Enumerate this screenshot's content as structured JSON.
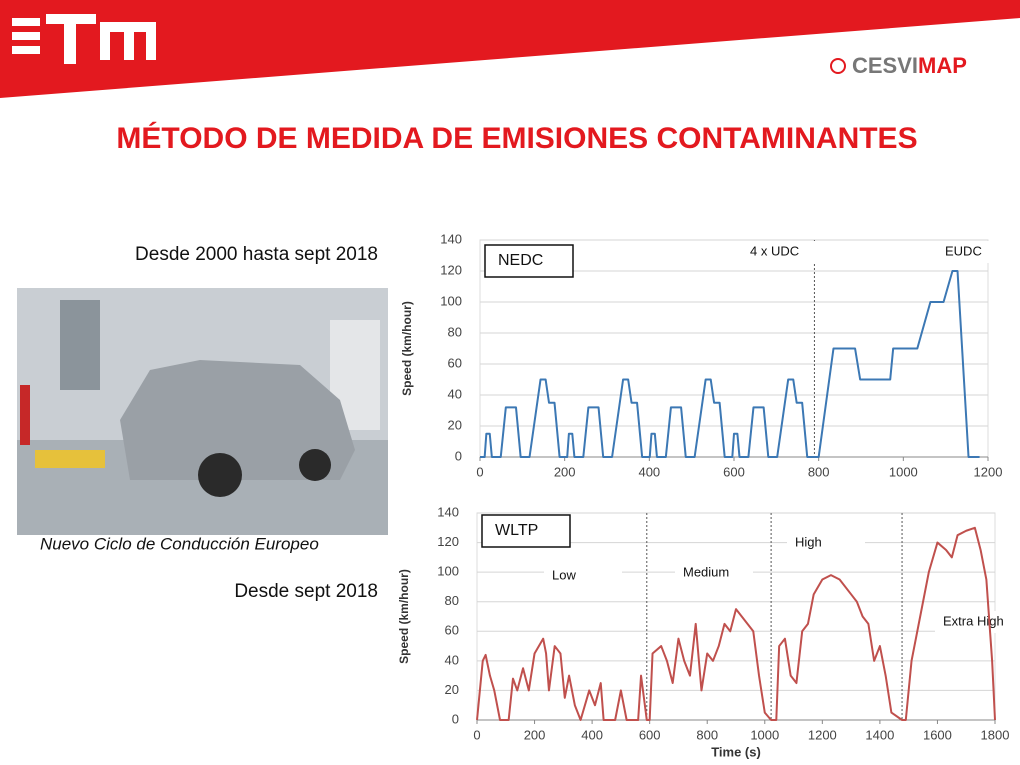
{
  "header": {
    "brand": [
      "CESVI",
      "MAP"
    ]
  },
  "title": "MÉTODO DE MEDIDA DE EMISIONES CONTAMINANTES",
  "left_texts": {
    "period_1": "Desde 2000 hasta sept 2018",
    "caption": "Nuevo Ciclo de Conducción Europeo",
    "period_2": "Desde sept 2018"
  },
  "chart_data": [
    {
      "type": "line",
      "ylabel": "Speed (km/hour)",
      "annotations": [
        "NEDC",
        "4 x UDC",
        "EUDC"
      ],
      "phase_boundaries": [
        790
      ],
      "xlim": [
        0,
        1200
      ],
      "xticks": [
        0,
        200,
        400,
        600,
        800,
        1000,
        1200
      ],
      "ylim": [
        0,
        140
      ],
      "yticks": [
        0,
        20,
        40,
        60,
        80,
        100,
        120,
        140
      ],
      "grid": true,
      "series": [
        {
          "name": "NEDC",
          "color": "#3c78b4",
          "x": [
            0,
            11,
            15,
            23,
            28,
            49,
            61,
            85,
            96,
            117,
            143,
            155,
            163,
            176,
            188,
            195,
            206,
            210,
            218,
            223,
            244,
            256,
            280,
            291,
            312,
            338,
            350,
            358,
            371,
            383,
            390,
            401,
            405,
            413,
            418,
            439,
            451,
            475,
            486,
            507,
            533,
            545,
            553,
            566,
            578,
            585,
            596,
            600,
            608,
            613,
            634,
            646,
            670,
            681,
            702,
            728,
            740,
            748,
            761,
            773,
            780,
            800,
            835,
            886,
            898,
            969,
            976,
            1033,
            1064,
            1095,
            1116,
            1128,
            1154,
            1180
          ],
          "values": [
            0,
            0,
            15,
            15,
            0,
            0,
            32,
            32,
            0,
            0,
            50,
            50,
            35,
            35,
            0,
            0,
            0,
            15,
            15,
            0,
            0,
            32,
            32,
            0,
            0,
            50,
            50,
            35,
            35,
            0,
            0,
            0,
            15,
            15,
            0,
            0,
            32,
            32,
            0,
            0,
            50,
            50,
            35,
            35,
            0,
            0,
            0,
            15,
            15,
            0,
            0,
            32,
            32,
            0,
            0,
            50,
            50,
            35,
            35,
            0,
            0,
            0,
            70,
            70,
            50,
            50,
            70,
            70,
            100,
            100,
            120,
            120,
            0,
            0
          ]
        }
      ]
    },
    {
      "type": "line",
      "ylabel": "Speed (km/hour)",
      "xlabel": "Time (s)",
      "annotations": [
        "WLTP",
        "Low",
        "Medium",
        "High",
        "Extra High"
      ],
      "phase_boundaries": [
        590,
        1022,
        1477
      ],
      "xlim": [
        0,
        1800
      ],
      "xticks": [
        0,
        200,
        400,
        600,
        800,
        1000,
        1200,
        1400,
        1600,
        1800
      ],
      "ylim": [
        0,
        140
      ],
      "yticks": [
        0,
        20,
        40,
        60,
        80,
        100,
        120,
        140
      ],
      "grid": true,
      "series": [
        {
          "name": "WLTP",
          "color": "#c0504d",
          "x": [
            0,
            20,
            30,
            45,
            60,
            80,
            110,
            125,
            140,
            160,
            180,
            200,
            230,
            240,
            250,
            270,
            290,
            305,
            320,
            340,
            360,
            390,
            410,
            430,
            440,
            480,
            500,
            520,
            560,
            570,
            590,
            600,
            610,
            640,
            660,
            680,
            700,
            720,
            740,
            760,
            780,
            800,
            820,
            840,
            860,
            880,
            900,
            920,
            940,
            960,
            980,
            1000,
            1022,
            1040,
            1050,
            1070,
            1090,
            1110,
            1130,
            1150,
            1170,
            1200,
            1230,
            1260,
            1300,
            1320,
            1340,
            1360,
            1380,
            1400,
            1420,
            1440,
            1477,
            1490,
            1510,
            1540,
            1570,
            1600,
            1630,
            1650,
            1670,
            1700,
            1730,
            1750,
            1770,
            1790,
            1800
          ],
          "values": [
            0,
            40,
            44,
            30,
            20,
            0,
            0,
            28,
            20,
            35,
            20,
            45,
            55,
            45,
            20,
            50,
            45,
            15,
            30,
            10,
            0,
            20,
            10,
            25,
            0,
            0,
            20,
            0,
            0,
            30,
            0,
            0,
            45,
            50,
            40,
            25,
            55,
            40,
            30,
            65,
            20,
            45,
            40,
            50,
            65,
            60,
            75,
            70,
            65,
            60,
            30,
            5,
            0,
            0,
            50,
            55,
            30,
            25,
            60,
            65,
            85,
            95,
            98,
            95,
            85,
            80,
            70,
            65,
            40,
            50,
            30,
            5,
            0,
            0,
            40,
            70,
            100,
            120,
            115,
            110,
            125,
            128,
            130,
            115,
            95,
            40,
            0
          ]
        }
      ]
    }
  ]
}
